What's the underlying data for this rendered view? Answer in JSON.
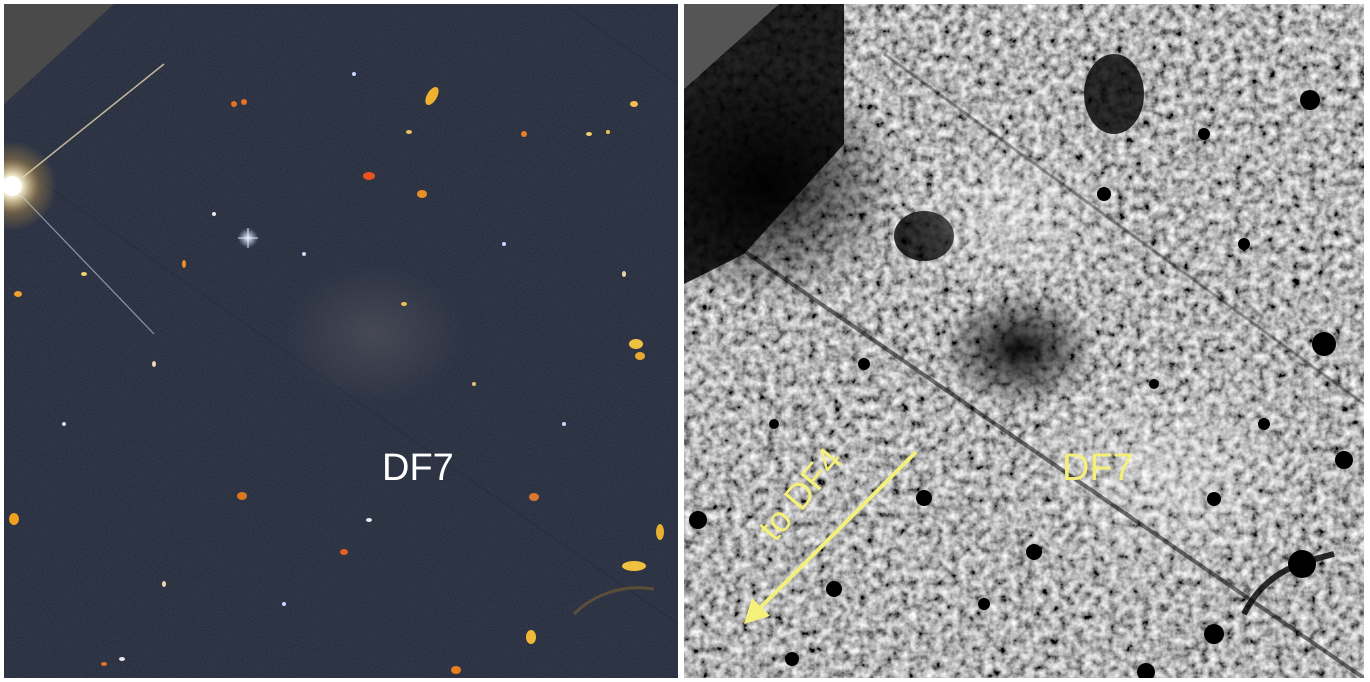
{
  "left_panel": {
    "label": "DF7",
    "label_color": "#ffffff",
    "background_color": "#1e2433"
  },
  "right_panel": {
    "label": "DF7",
    "label_color": "#f5f07a",
    "arrow_label": "to DF4",
    "arrow_color": "#f5f07a",
    "background_color": "#6b6b6b"
  }
}
